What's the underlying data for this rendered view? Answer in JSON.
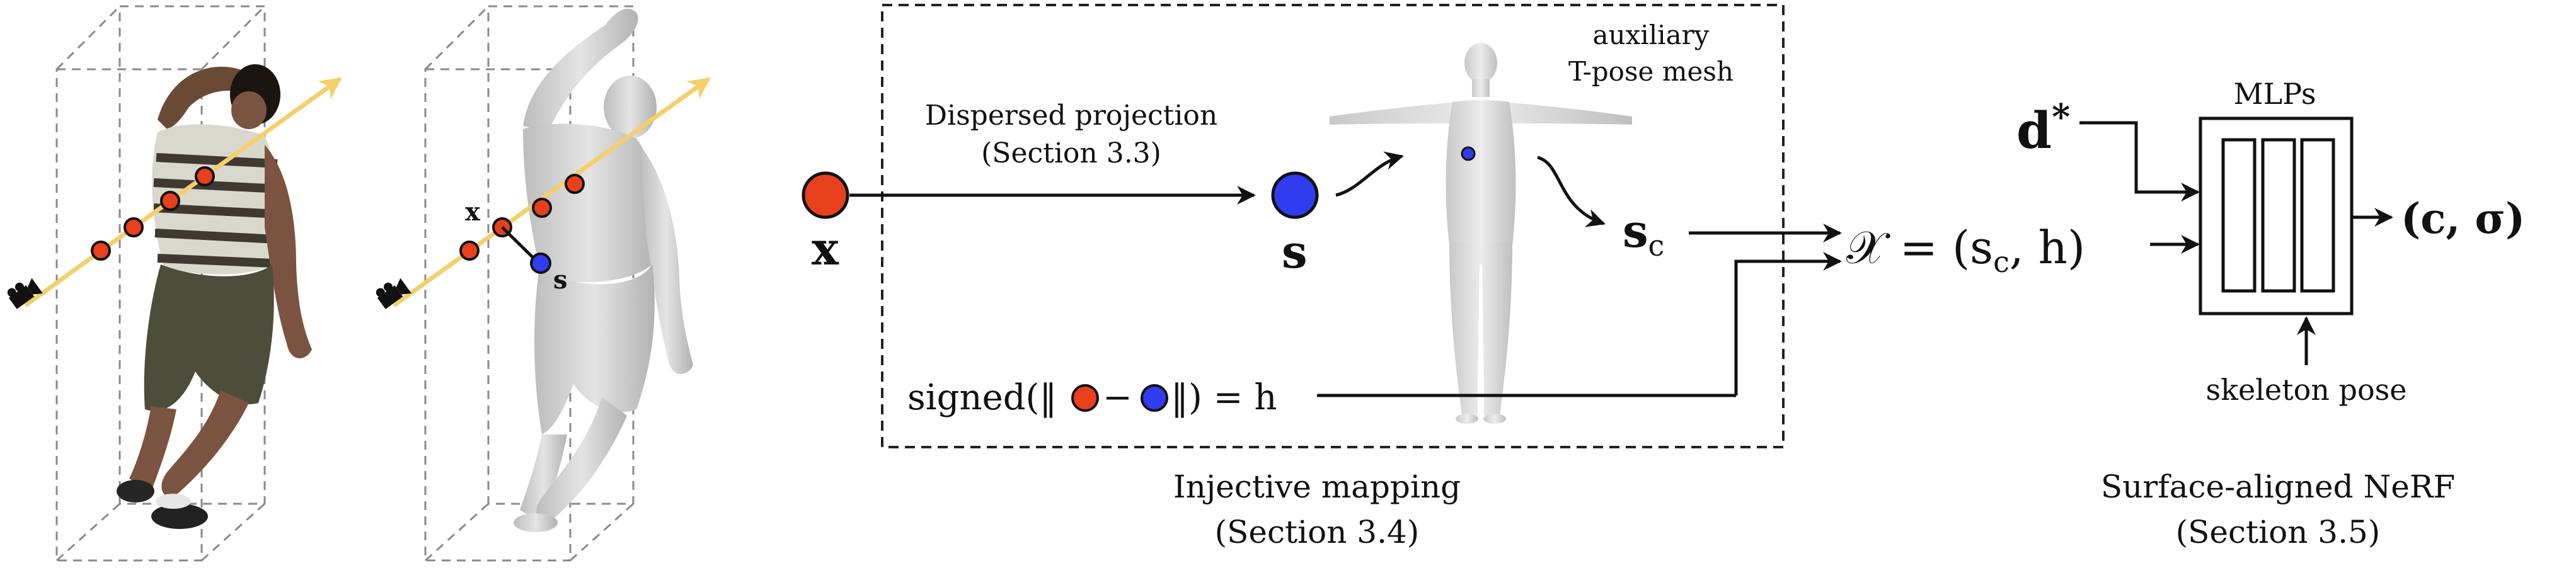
{
  "panels": {
    "photo": {
      "description_icon": "camera-icon"
    },
    "mesh": {
      "point_x": "x",
      "point_s": "s",
      "icon": "camera-icon"
    }
  },
  "mapping": {
    "query_point": "x",
    "surface_point": "s",
    "projection_label_1": "Dispersed projection",
    "projection_label_2": "(Section 3.3)",
    "tpose_label_1": "auxiliary",
    "tpose_label_2": "T-pose mesh",
    "surface_coord": "s",
    "surface_coord_sub": "c",
    "signed_prefix": "signed(‖",
    "signed_minus": "−",
    "signed_suffix": "‖) = h",
    "caption_1": "Injective mapping",
    "caption_2": "(Section 3.4)"
  },
  "nerf": {
    "input_d": "d",
    "input_d_sup": "*",
    "mlps_label": "MLPs",
    "chi_label": "𝒳 = (s",
    "chi_sub": "c",
    "chi_tail": ", h)",
    "output_label": "(c, σ)",
    "skeleton_label": "skeleton pose",
    "caption_1": "Surface-aligned NeRF",
    "caption_2": "(Section 3.5)"
  },
  "colors": {
    "red_point": "#e8401c",
    "blue_point": "#2f3cf0",
    "ray": "#f4cf6a",
    "dash": "#8a8a8a",
    "mapping_box_dash": "#222222"
  }
}
